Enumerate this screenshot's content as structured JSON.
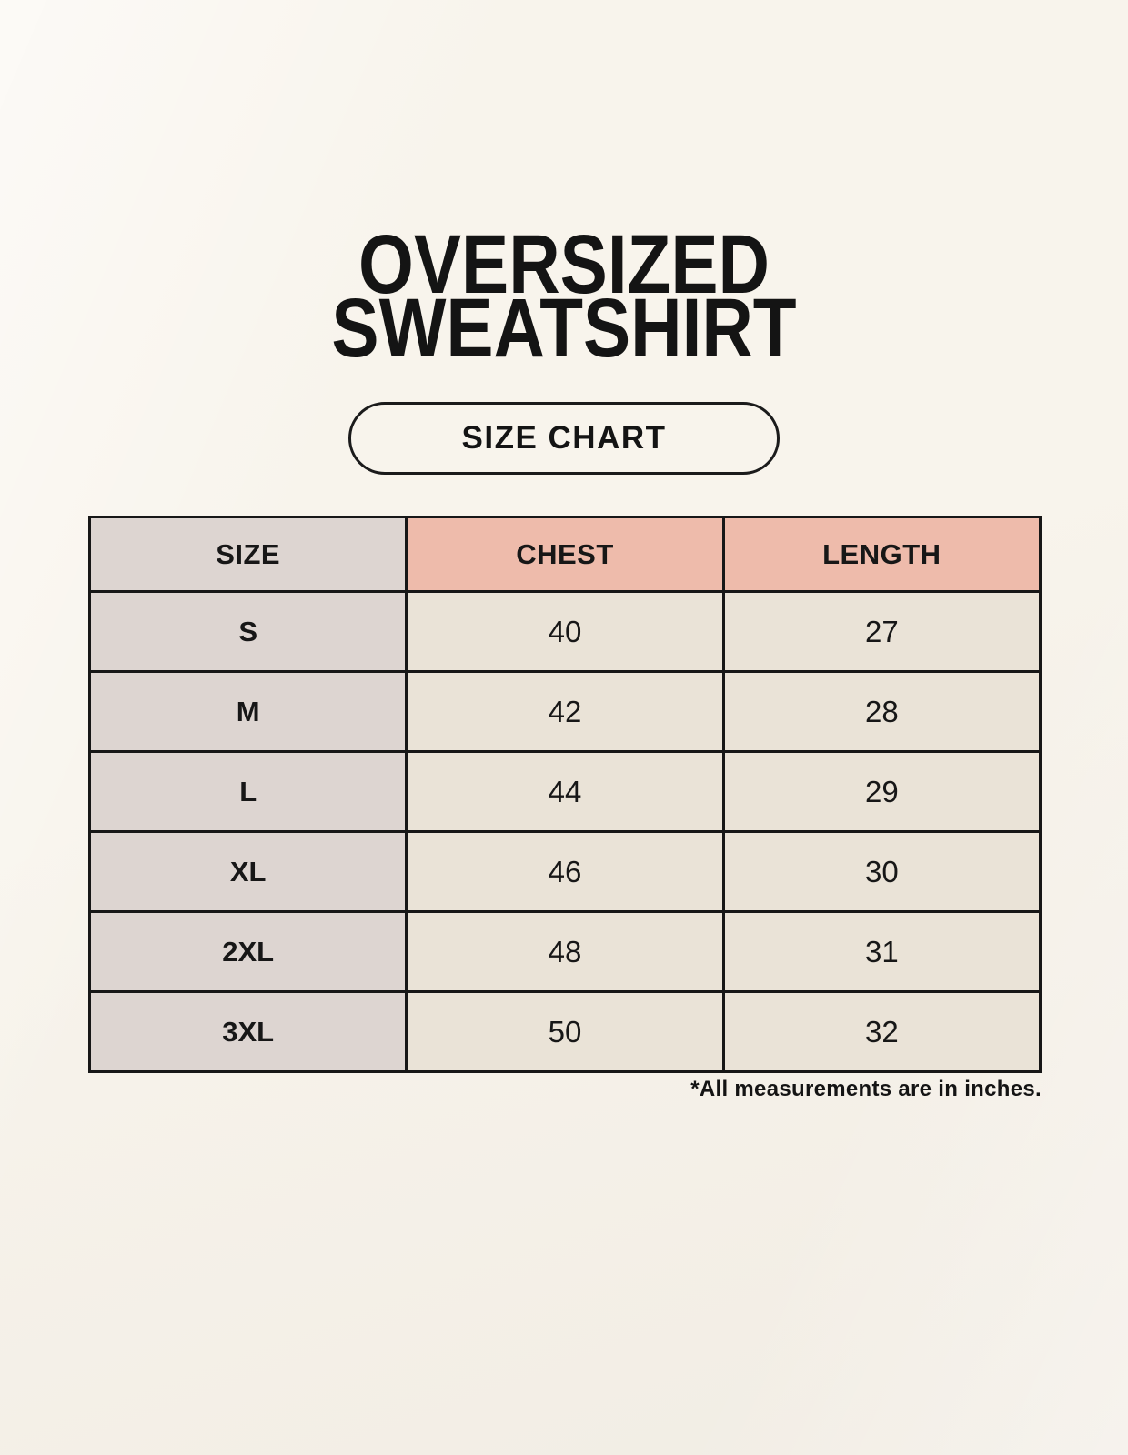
{
  "title": {
    "line1": "OVERSIZED",
    "line2": "SWEATSHIRT"
  },
  "badge": {
    "label": "SIZE CHART"
  },
  "table": {
    "headers": [
      "SIZE",
      "CHEST",
      "LENGTH"
    ],
    "rows": [
      {
        "size": "S",
        "chest": "40",
        "length": "27"
      },
      {
        "size": "M",
        "chest": "42",
        "length": "28"
      },
      {
        "size": "L",
        "chest": "44",
        "length": "29"
      },
      {
        "size": "XL",
        "chest": "46",
        "length": "30"
      },
      {
        "size": "2XL",
        "chest": "48",
        "length": "31"
      },
      {
        "size": "3XL",
        "chest": "50",
        "length": "32"
      }
    ]
  },
  "footnote": "*All measurements are in inches.",
  "colors": {
    "page_background": "#f8f4ec",
    "header_accent_pink": "#eebbab",
    "size_column_taupe": "#ddd5d1",
    "cell_cream": "#eae3d7",
    "border_and_text": "#171717"
  },
  "chart_data": {
    "type": "table",
    "title": "OVERSIZED SWEATSHIRT — SIZE CHART",
    "columns": [
      "SIZE",
      "CHEST",
      "LENGTH"
    ],
    "rows": [
      [
        "S",
        40,
        27
      ],
      [
        "M",
        42,
        28
      ],
      [
        "L",
        44,
        29
      ],
      [
        "XL",
        46,
        30
      ],
      [
        "2XL",
        48,
        31
      ],
      [
        "3XL",
        50,
        32
      ]
    ],
    "units": "inches",
    "note": "*All measurements are in inches."
  }
}
